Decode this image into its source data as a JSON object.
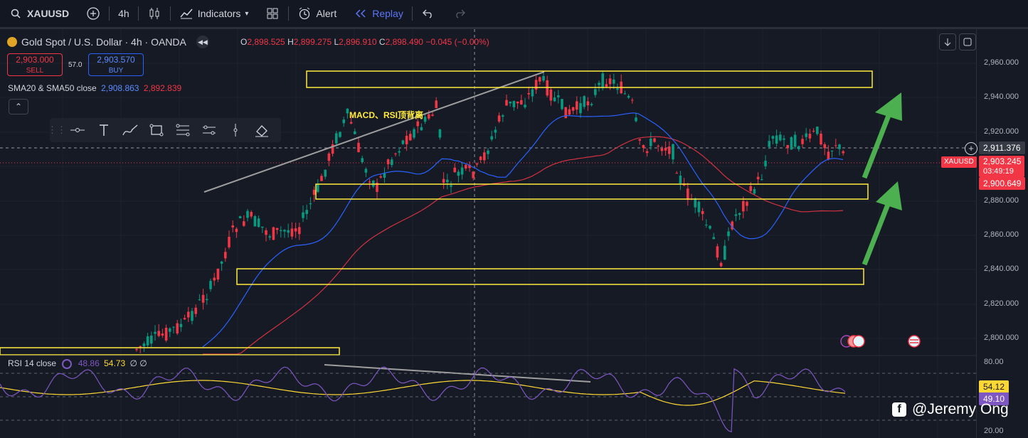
{
  "toolbar": {
    "symbol": "XAUUSD",
    "interval": "4h",
    "indicators_label": "Indicators",
    "alert_label": "Alert",
    "replay_label": "Replay"
  },
  "legend": {
    "title": "Gold Spot / U.S. Dollar · 4h · OANDA",
    "ohlc": {
      "o_label": "O",
      "o": "2,898.525",
      "h_label": "H",
      "h": "2,899.275",
      "l_label": "L",
      "l": "2,896.910",
      "c_label": "C",
      "c": "2,898.490",
      "change": "−0.045 (−0.00%)"
    },
    "sell_price": "2,903.000",
    "sell_label": "SELL",
    "spread": "57.0",
    "buy_price": "2,903.570",
    "buy_label": "BUY",
    "sma_label": "SMA20 & SMA50 close",
    "sma20": "2,908.863",
    "sma50": "2,892.839",
    "collapse_glyph": "⌃"
  },
  "annotation_text": "MACD、RSI顶背离",
  "price_axis": {
    "ticks": [
      "2,960.000",
      "2,940.000",
      "2,920.000",
      "2,880.000",
      "2,860.000",
      "2,840.000",
      "2,820.000",
      "2,800.000"
    ],
    "crosshair_price": "2,911.376",
    "symbol_tag": "XAUUSD",
    "last_price": "2,903.245",
    "countdown": "03:49:19",
    "sma_tag": "2,900.649"
  },
  "rsi": {
    "label": "RSI 14 close",
    "value1": "48.86",
    "value2": "54.73",
    "extra": "∅ ∅",
    "ticks": [
      "80.00",
      "20.00"
    ],
    "tag_ma": "54.12",
    "tag_rsi": "49.10"
  },
  "watermark": "@Jeremy Ong",
  "colors": {
    "up": "#089981",
    "down": "#f23645",
    "sma20": "#2962ff",
    "sma50": "#f23645",
    "zone": "#ffeb3b",
    "arrow": "#4caf50",
    "rsi_line": "#7e57c2",
    "rsi_ma": "#fdd835"
  }
}
